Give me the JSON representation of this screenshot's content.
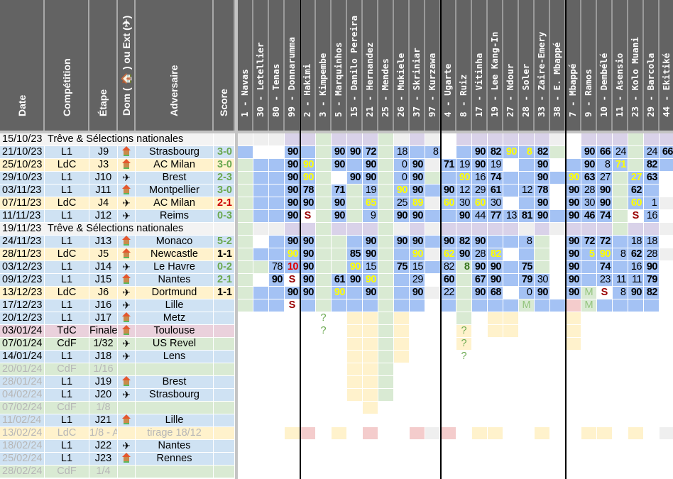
{
  "headers": {
    "info": [
      "Date",
      "Compétition",
      "Étape",
      "Dom ( 🏠 ) ou Ext (✈)",
      "Adversaire",
      "Score"
    ],
    "players": [
      "1 - Navas",
      "30 - Letellier",
      "80 - Tenas",
      "99 - Donnarumma",
      "2 - Hakimi",
      "3 - Kimpembe",
      "5 - Marquinhos",
      "15 - Danilo Pereira",
      "21 - Hernandez",
      "25 - Mendes",
      "26 - Mukiele",
      "37 - Skriniar",
      "97 - Kurzawa",
      "4 - Ugarte",
      "8 - Ruiz",
      "17 - Vitinha",
      "19 - Lee Kang-In",
      "27 - Ndour",
      "28 - Soler",
      "33 - Zaire-Emery",
      "38 - E. Mbappé",
      "7 - Mbappé",
      "9 - Ramos",
      "10 - Dembélé",
      "11 - Asensio",
      "23 - Kolo Muani",
      "29 - Barcola",
      "44 - Ekitiké"
    ]
  },
  "colors": {
    "L1": "#cfe2f3",
    "LdC": "#fff2cc",
    "TdC": "#ead1dc",
    "CdF": "#d9ead3",
    "break": "#f3f3f3",
    "win": "#6aa84f",
    "loss": "#cc0000",
    "draw": "#000000",
    "played": "#a4c2f4",
    "bench_green": "#d9ead3",
    "grey": "#efefef",
    "lavender": "#d9d2e9",
    "future_yellow": "#fff2cc",
    "future_red": "#f4cccc",
    "sub_yellow": "#ffff00",
    "susp": "#990000"
  },
  "rows": [
    {
      "date": "15/10/23",
      "break": "Trêve & Sélections nationales"
    },
    {
      "date": "21/10/23",
      "comp": "L1",
      "etape": "J9",
      "venue": "home",
      "opp": "Strasbourg",
      "score": "3-0",
      "res": "win"
    },
    {
      "date": "25/10/23",
      "comp": "LdC",
      "etape": "J3",
      "venue": "home",
      "opp": "AC Milan",
      "score": "3-0",
      "res": "win"
    },
    {
      "date": "29/10/23",
      "comp": "L1",
      "etape": "J10",
      "venue": "away",
      "opp": "Brest",
      "score": "2-3",
      "res": "win"
    },
    {
      "date": "03/11/23",
      "comp": "L1",
      "etape": "J11",
      "venue": "home",
      "opp": "Montpellier",
      "score": "3-0",
      "res": "win"
    },
    {
      "date": "07/11/23",
      "comp": "LdC",
      "etape": "J4",
      "venue": "away",
      "opp": "AC Milan",
      "score": "2-1",
      "res": "loss"
    },
    {
      "date": "11/11/23",
      "comp": "L1",
      "etape": "J12",
      "venue": "away",
      "opp": "Reims",
      "score": "0-3",
      "res": "win"
    },
    {
      "date": "19/11/23",
      "break": "Trêve & Sélections nationales"
    },
    {
      "date": "24/11/23",
      "comp": "L1",
      "etape": "J13",
      "venue": "home",
      "opp": "Monaco",
      "score": "5-2",
      "res": "win"
    },
    {
      "date": "28/11/23",
      "comp": "LdC",
      "etape": "J5",
      "venue": "home",
      "opp": "Newcastle",
      "score": "1-1",
      "res": "draw"
    },
    {
      "date": "03/12/23",
      "comp": "L1",
      "etape": "J14",
      "venue": "away",
      "opp": "Le Havre",
      "score": "0-2",
      "res": "win"
    },
    {
      "date": "09/12/23",
      "comp": "L1",
      "etape": "J15",
      "venue": "home",
      "opp": "Nantes",
      "score": "2-1",
      "res": "win"
    },
    {
      "date": "13/12/23",
      "comp": "LdC",
      "etape": "J6",
      "venue": "away",
      "opp": "Dortmund",
      "score": "1-1",
      "res": "draw"
    },
    {
      "date": "17/12/23",
      "comp": "L1",
      "etape": "J16",
      "venue": "away",
      "opp": "Lille",
      "score": ""
    },
    {
      "date": "20/12/23",
      "comp": "L1",
      "etape": "J17",
      "venue": "home",
      "opp": "Metz",
      "score": ""
    },
    {
      "date": "03/01/24",
      "comp": "TdC",
      "etape": "Finale",
      "venue": "home",
      "opp": "Toulouse",
      "score": ""
    },
    {
      "date": "07/01/24",
      "comp": "CdF",
      "etape": "1/32",
      "venue": "away",
      "opp": "US Revel",
      "score": ""
    },
    {
      "date": "14/01/24",
      "comp": "L1",
      "etape": "J18",
      "venue": "away",
      "opp": "Lens",
      "score": ""
    },
    {
      "date": "20/01/24",
      "comp": "CdF",
      "etape": "1/16",
      "venue": "",
      "opp": "",
      "score": "",
      "faded": true
    },
    {
      "date": "28/01/24",
      "comp": "L1",
      "etape": "J19",
      "venue": "home",
      "opp": "Brest",
      "score": "",
      "fadedDate": true
    },
    {
      "date": "04/02/24",
      "comp": "L1",
      "etape": "J20",
      "venue": "away",
      "opp": "Strasbourg",
      "score": "",
      "fadedDate": true
    },
    {
      "date": "07/02/24",
      "comp": "CdF",
      "etape": "1/8",
      "venue": "",
      "opp": "",
      "score": "",
      "faded": true
    },
    {
      "date": "11/02/24",
      "comp": "L1",
      "etape": "J21",
      "venue": "home",
      "opp": "Lille",
      "score": "",
      "fadedDate": true
    },
    {
      "date": "13/02/24",
      "comp": "LdC",
      "etape": "1/8 - A",
      "venue": "",
      "opp": "tirage 18/12",
      "score": "",
      "faded": true
    },
    {
      "date": "18/02/24",
      "comp": "L1",
      "etape": "J22",
      "venue": "away",
      "opp": "Nantes",
      "score": "",
      "fadedDate": true
    },
    {
      "date": "25/02/24",
      "comp": "L1",
      "etape": "J23",
      "venue": "home",
      "opp": "Rennes",
      "score": "",
      "fadedDate": true
    },
    {
      "date": "28/02/24",
      "comp": "CdF",
      "etape": "1/4",
      "venue": "",
      "opp": "",
      "score": "",
      "faded": true
    }
  ],
  "grid": [
    [
      "g",
      "g",
      "g",
      "l",
      "l",
      "g2",
      "l",
      "l",
      "l",
      "g2",
      "g",
      "l",
      "g",
      "w",
      "l",
      "l",
      "l",
      "l",
      "l",
      "l",
      "g",
      "w",
      "l",
      "l",
      "l",
      "g2",
      "l",
      "l"
    ],
    [
      "p",
      "w",
      "w",
      "p:90b",
      "p",
      "g2",
      "p:90b",
      "p:90b",
      "p:72b",
      "g2",
      "p:18",
      "p",
      "p:8",
      "w",
      "p",
      "p:90b",
      "p:82b",
      "p:90y",
      "p:8y",
      "p:82b",
      "g2",
      "w",
      "p:90b",
      "p:66b",
      "p:24",
      "g2",
      "p:24",
      "p:66b"
    ],
    [
      "g2",
      "p",
      "p",
      "p:90b",
      "p:90y",
      "g2",
      "p:90b",
      "p",
      "p:90b",
      "g2",
      "p:0",
      "p:90b",
      "g",
      "p:71b",
      "p:19",
      "p:90b",
      "p:19",
      "w",
      "p",
      "p:90b",
      "w",
      "p",
      "p:90b",
      "p:8",
      "p:71y",
      "g2",
      "p:82b",
      "p"
    ],
    [
      "g2",
      "p",
      "p",
      "p:90b",
      "p:90y",
      "g2",
      "w",
      "p:90b",
      "p:90b",
      "g2",
      "p:0",
      "p:90b",
      "g2",
      "p",
      "p:90y",
      "p:16",
      "p:74b",
      "p",
      "p",
      "p:90b",
      "p",
      "p:90y",
      "p:63b",
      "p:27",
      "g2",
      "p:27y",
      "p:63b",
      "w"
    ],
    [
      "g2",
      "p",
      "p",
      "p:90b",
      "p:78b",
      "g2",
      "p:71b",
      "g2",
      "p:19",
      "g2",
      "p:90y",
      "p:90b",
      "p",
      "p:90b",
      "p:12",
      "p:29",
      "p:61b",
      "p",
      "p:12",
      "p:78b",
      "w",
      "p:90b",
      "p:28",
      "p:90b",
      "g2",
      "p:62b",
      "p",
      "w"
    ],
    [
      "g2",
      "p",
      "p",
      "p:90b",
      "p:90b",
      "g2",
      "p:90b",
      "g2",
      "p:65y",
      "g2",
      "p:25",
      "p:89y",
      "g",
      "p:60y",
      "p:30",
      "p:60y",
      "p:30",
      "w",
      "p",
      "p:90b",
      "w",
      "p:90b",
      "p:30",
      "p:90b",
      "g2",
      "p:60y",
      "p:1",
      "g"
    ],
    [
      "g2",
      "p",
      "p",
      "p:90b",
      "w:S",
      "g2",
      "p:90b",
      "g2",
      "p:9",
      "g2",
      "p:90b",
      "p:90b",
      "p",
      "p",
      "p:90b",
      "p:44",
      "p:77b",
      "p:13",
      "p:81b",
      "p:90b",
      "p",
      "p:90b",
      "p:46b",
      "p:74b",
      "g2",
      "w:S",
      "p:16",
      "w"
    ],
    [
      "g2",
      "g",
      "g",
      "l",
      "l",
      "g2",
      "l",
      "l",
      "l",
      "g2",
      "g",
      "l",
      "g",
      "l",
      "l",
      "l",
      "l",
      "l",
      "g",
      "l",
      "g",
      "l",
      "l",
      "l",
      "g2",
      "l",
      "l",
      "g"
    ],
    [
      "g2",
      "w",
      "p",
      "p:90b",
      "p:90b",
      "g2",
      "g2",
      "p",
      "p:90b",
      "g2",
      "p:90b",
      "p:90b",
      "p",
      "p:90b",
      "p:82b",
      "p:90b",
      "p",
      "p",
      "p:8",
      "g2",
      "w",
      "p:90b",
      "p:72b",
      "p:72b",
      "p",
      "p:18",
      "p:18",
      "w"
    ],
    [
      "g2",
      "p",
      "p",
      "p:90y",
      "p:90b",
      "g2",
      "g2",
      "p:85b",
      "p:90b",
      "g2",
      "p",
      "p:90y",
      "g",
      "p:62y",
      "p:90b",
      "p:28",
      "p:82y",
      "w",
      "p",
      "g2",
      "w",
      "p:90b",
      "p:5y",
      "p:90y",
      "p:8",
      "p:62b",
      "p:28",
      "g"
    ],
    [
      "g2",
      "g2",
      "p:78",
      "p:10r",
      "p:90b",
      "g2",
      "g2",
      "p:90y",
      "p:15",
      "g2",
      "p:75b",
      "p:15",
      "p",
      "p:82",
      "g2:8gb",
      "p:90b",
      "p:90b",
      "p",
      "p:75b",
      "g2",
      "w",
      "p:90b",
      "p",
      "p:74b",
      "p",
      "p:16",
      "p:90b",
      "w"
    ],
    [
      "g2",
      "w",
      "p:90b",
      "w:S",
      "p:90b",
      "g2",
      "p:61b",
      "p:90b",
      "p:90y",
      "g2",
      "p",
      "p:29",
      "w",
      "p:60b",
      "g2",
      "p:67b",
      "p:90b",
      "p",
      "p:79b",
      "p:30",
      "w",
      "p:90b",
      "p",
      "p:23",
      "p:11",
      "p:11",
      "p:79b",
      "w"
    ],
    [
      "g2",
      "p",
      "p",
      "p:90b",
      "p:90b",
      "g2",
      "p:90y",
      "p",
      "p:90b",
      "g2",
      "p",
      "p:90b",
      "g",
      "p:22",
      "g2",
      "p:90b",
      "p:68b",
      "w",
      "p:0",
      "p:90b",
      "w",
      "p:90b",
      "g2:M",
      "w:S",
      "p:8",
      "p:90b",
      "p:82b",
      "w"
    ],
    [
      "g2",
      "p",
      "p",
      "w:S",
      "p",
      "g2",
      "p",
      "p",
      "p",
      "g2",
      "p",
      "p",
      "w",
      "p",
      "g2",
      "p",
      "p",
      "p",
      "g2:M",
      "p",
      "p",
      "r",
      "g2:M",
      "p",
      "p",
      "p",
      "p",
      "w"
    ],
    [
      "w",
      "w",
      "w",
      "w",
      "w",
      "w:?",
      "w",
      "y",
      "y",
      "g2",
      "y",
      "w",
      "w",
      "w",
      "g2",
      "w",
      "y",
      "y",
      "w",
      "w",
      "w",
      "y",
      "w",
      "w",
      "w",
      "w",
      "w",
      "w"
    ],
    [
      "w",
      "w",
      "w",
      "w",
      "w",
      "w:?",
      "w",
      "y",
      "y",
      "g2",
      "y",
      "w",
      "w",
      "w",
      "y:?",
      "w",
      "y",
      "y",
      "w",
      "w",
      "w",
      "y",
      "w",
      "w",
      "w",
      "w",
      "w",
      "w"
    ],
    [
      "w",
      "w",
      "w",
      "w",
      "w",
      "w",
      "w",
      "y",
      "y",
      "g2",
      "y",
      "w",
      "w",
      "w",
      "y:?",
      "w",
      "w",
      "w",
      "w",
      "w",
      "w",
      "y",
      "w",
      "w",
      "w",
      "w",
      "w",
      "w"
    ],
    [
      "w",
      "w",
      "w",
      "w",
      "w",
      "w",
      "w",
      "y",
      "y",
      "g2",
      "y",
      "w",
      "w",
      "w",
      "w:?",
      "w",
      "w",
      "w",
      "w",
      "w",
      "w",
      "w",
      "w",
      "w",
      "w",
      "w",
      "w",
      "w"
    ],
    [
      "w",
      "w",
      "w",
      "w",
      "w",
      "w",
      "w",
      "y",
      "y",
      "g2",
      "w",
      "w",
      "w",
      "w",
      "w",
      "w",
      "w",
      "w",
      "w",
      "w",
      "w",
      "w",
      "w",
      "w",
      "w",
      "w",
      "w",
      "w"
    ],
    [
      "w",
      "w",
      "w",
      "w",
      "w",
      "w",
      "w",
      "y",
      "y",
      "g2",
      "w",
      "w",
      "w",
      "w",
      "w",
      "w",
      "w",
      "w",
      "w",
      "w",
      "w",
      "w",
      "w",
      "w",
      "w",
      "w",
      "w",
      "w"
    ],
    [
      "w",
      "w",
      "w",
      "w",
      "w",
      "w",
      "w",
      "y",
      "y",
      "g2",
      "w",
      "w",
      "w",
      "w",
      "w",
      "w",
      "w",
      "w",
      "w",
      "w",
      "w",
      "w",
      "w",
      "w",
      "w",
      "w",
      "w",
      "w"
    ],
    [
      "w",
      "w",
      "w",
      "w",
      "w",
      "w",
      "w",
      "w",
      "y",
      "w",
      "w",
      "w",
      "w",
      "w",
      "w",
      "w",
      "w",
      "w",
      "w",
      "w",
      "w",
      "w",
      "w",
      "w",
      "w",
      "w",
      "w",
      "w"
    ],
    [
      "w",
      "w",
      "w",
      "w",
      "w",
      "w",
      "w",
      "w",
      "w",
      "w",
      "w",
      "w",
      "w",
      "w",
      "w",
      "w",
      "w",
      "w",
      "w",
      "w",
      "w",
      "w",
      "w",
      "w",
      "w",
      "w",
      "w",
      "w"
    ],
    [
      "w",
      "w",
      "w",
      "y",
      "r",
      "w",
      "y",
      "w",
      "r",
      "w",
      "w",
      "r",
      "g",
      "r",
      "w",
      "y",
      "y",
      "w",
      "w",
      "y",
      "w",
      "w",
      "y",
      "y",
      "w",
      "y",
      "w",
      "g"
    ],
    [
      "w",
      "w",
      "w",
      "w",
      "w",
      "w",
      "w",
      "w",
      "w",
      "w",
      "w",
      "w",
      "w",
      "w",
      "w",
      "w",
      "w",
      "w",
      "w",
      "w",
      "w",
      "w",
      "w",
      "w",
      "w",
      "w",
      "w",
      "w"
    ],
    [
      "w",
      "w",
      "w",
      "w",
      "w",
      "w",
      "w",
      "w",
      "w",
      "w",
      "w",
      "w",
      "w",
      "w",
      "w",
      "w",
      "w",
      "w",
      "w",
      "w",
      "w",
      "w",
      "w",
      "w",
      "w",
      "w",
      "w",
      "w"
    ],
    [
      "w",
      "w",
      "w",
      "w",
      "w",
      "w",
      "w",
      "w",
      "w",
      "w",
      "w",
      "w",
      "w",
      "w",
      "w",
      "w",
      "w",
      "w",
      "w",
      "w",
      "w",
      "w",
      "w",
      "w",
      "w",
      "w",
      "w",
      "w"
    ]
  ]
}
